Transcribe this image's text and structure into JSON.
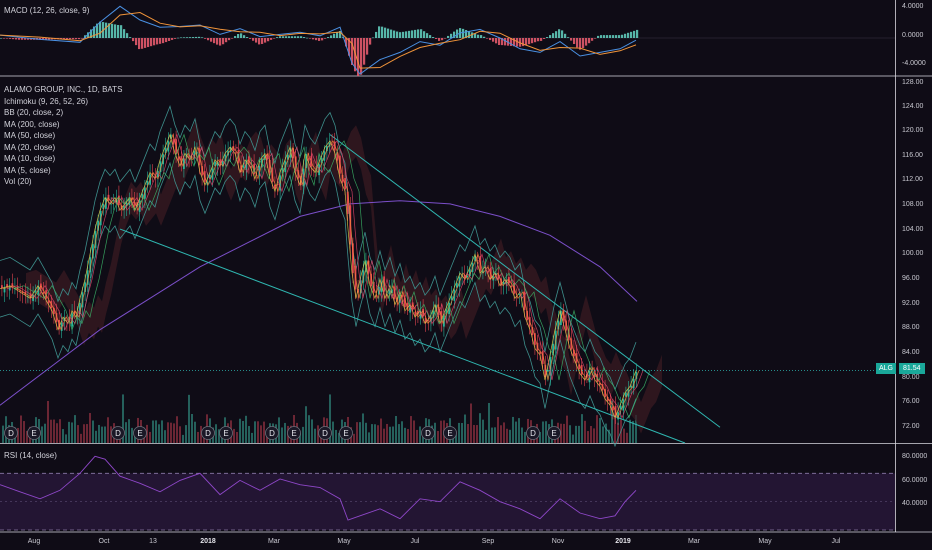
{
  "chart_data": {
    "type": "line",
    "title": "ALAMO GROUP, INC., 1D, BATS",
    "symbol": "ALG",
    "last_price": "81.54",
    "indicators": [
      "Ichimoku (9, 26, 52, 26)",
      "BB (20, close, 2)",
      "MA (200, close)",
      "MA (50, close)",
      "MA (20, close)",
      "MA (10, close)",
      "MA (5, close)",
      "Vol (20)"
    ],
    "macd_label": "MACD (12, 26, close, 9)",
    "rsi_label": "RSI (14, close)",
    "x_ticks": [
      "Aug",
      "Oct",
      "13",
      "2018",
      "Mar",
      "May",
      "Jul",
      "Sep",
      "Nov",
      "2019",
      "Mar",
      "May",
      "Jul"
    ],
    "y_ticks_price": [
      "128.00",
      "124.00",
      "120.00",
      "116.00",
      "112.00",
      "108.00",
      "104.00",
      "100.00",
      "96.00",
      "92.00",
      "88.00",
      "84.00",
      "80.00",
      "76.00",
      "72.00"
    ],
    "y_ticks_macd": [
      "4.0000",
      "0.0000",
      "-4.0000"
    ],
    "y_ticks_rsi": [
      "80.0000",
      "60.0000",
      "40.0000"
    ],
    "ylim_price": [
      70,
      128
    ],
    "ylim_macd": [
      -5,
      5
    ],
    "ylim_rsi": [
      30,
      90
    ],
    "event_markers": [
      "D",
      "E",
      "D",
      "E",
      "D",
      "E",
      "D",
      "E",
      "D",
      "E",
      "D",
      "E",
      "D",
      "E"
    ],
    "close_path": [
      [
        0,
        94.5
      ],
      [
        10,
        95
      ],
      [
        20,
        94
      ],
      [
        30,
        93
      ],
      [
        38,
        95
      ],
      [
        45,
        93
      ],
      [
        52,
        91
      ],
      [
        58,
        88
      ],
      [
        63,
        90
      ],
      [
        68,
        89
      ],
      [
        72,
        91
      ],
      [
        76,
        90
      ],
      [
        80,
        93
      ],
      [
        85,
        96
      ],
      [
        90,
        100
      ],
      [
        95,
        104
      ],
      [
        100,
        107
      ],
      [
        105,
        109
      ],
      [
        110,
        108
      ],
      [
        115,
        109
      ],
      [
        120,
        107
      ],
      [
        125,
        108
      ],
      [
        130,
        109
      ],
      [
        135,
        107
      ],
      [
        140,
        109
      ],
      [
        145,
        111
      ],
      [
        150,
        113
      ],
      [
        155,
        112
      ],
      [
        160,
        115
      ],
      [
        165,
        117
      ],
      [
        170,
        119
      ],
      [
        175,
        116
      ],
      [
        180,
        114
      ],
      [
        185,
        116
      ],
      [
        190,
        115
      ],
      [
        195,
        117
      ],
      [
        200,
        113
      ],
      [
        205,
        111
      ],
      [
        210,
        113
      ],
      [
        215,
        115
      ],
      [
        220,
        114
      ],
      [
        225,
        116
      ],
      [
        230,
        117
      ],
      [
        235,
        116
      ],
      [
        240,
        113
      ],
      [
        245,
        115
      ],
      [
        250,
        114
      ],
      [
        255,
        112
      ],
      [
        260,
        115
      ],
      [
        265,
        116
      ],
      [
        270,
        112
      ],
      [
        275,
        110
      ],
      [
        280,
        113
      ],
      [
        285,
        115
      ],
      [
        290,
        117
      ],
      [
        295,
        113
      ],
      [
        300,
        111
      ],
      [
        305,
        116
      ],
      [
        310,
        114
      ],
      [
        315,
        113
      ],
      [
        320,
        115
      ],
      [
        325,
        117
      ],
      [
        330,
        118
      ],
      [
        335,
        116
      ],
      [
        340,
        112
      ],
      [
        345,
        110
      ],
      [
        348,
        104
      ],
      [
        352,
        97
      ],
      [
        356,
        93
      ],
      [
        360,
        96
      ],
      [
        365,
        99
      ],
      [
        370,
        95
      ],
      [
        375,
        93
      ],
      [
        380,
        96
      ],
      [
        385,
        93
      ],
      [
        390,
        95
      ],
      [
        395,
        92
      ],
      [
        400,
        94
      ],
      [
        405,
        91
      ],
      [
        410,
        92
      ],
      [
        415,
        90
      ],
      [
        420,
        91
      ],
      [
        425,
        89
      ],
      [
        430,
        90
      ],
      [
        435,
        92
      ],
      [
        440,
        89
      ],
      [
        445,
        91
      ],
      [
        450,
        93
      ],
      [
        455,
        95
      ],
      [
        460,
        97
      ],
      [
        465,
        96
      ],
      [
        470,
        98
      ],
      [
        475,
        100
      ],
      [
        480,
        97
      ],
      [
        485,
        98
      ],
      [
        490,
        96
      ],
      [
        495,
        97
      ],
      [
        500,
        95
      ],
      [
        505,
        96
      ],
      [
        510,
        95
      ],
      [
        515,
        93
      ],
      [
        520,
        94
      ],
      [
        525,
        90
      ],
      [
        530,
        88
      ],
      [
        535,
        85
      ],
      [
        540,
        84
      ],
      [
        545,
        80
      ],
      [
        550,
        84
      ],
      [
        555,
        88
      ],
      [
        560,
        91
      ],
      [
        565,
        88
      ],
      [
        570,
        85
      ],
      [
        575,
        83
      ],
      [
        580,
        81
      ],
      [
        585,
        80
      ],
      [
        590,
        82
      ],
      [
        595,
        80
      ],
      [
        600,
        79
      ],
      [
        605,
        77
      ],
      [
        610,
        76
      ],
      [
        615,
        74
      ],
      [
        620,
        76
      ],
      [
        625,
        78
      ],
      [
        630,
        79
      ],
      [
        636,
        81.54
      ]
    ],
    "ma200_path": [
      [
        0,
        76
      ],
      [
        50,
        82
      ],
      [
        100,
        88
      ],
      [
        150,
        93
      ],
      [
        200,
        98
      ],
      [
        250,
        102
      ],
      [
        300,
        106
      ],
      [
        350,
        108
      ],
      [
        400,
        108.5
      ],
      [
        450,
        108
      ],
      [
        500,
        106
      ],
      [
        550,
        103
      ],
      [
        600,
        98
      ],
      [
        637,
        92.5
      ]
    ],
    "trendline_upper": [
      [
        330,
        119
      ],
      [
        720,
        72.5
      ]
    ],
    "trendline_lower": [
      [
        120,
        104
      ],
      [
        685,
        70
      ]
    ],
    "macd_series": [
      [
        0,
        0.4
      ],
      [
        40,
        -0.2
      ],
      [
        80,
        -0.6
      ],
      [
        100,
        2.2
      ],
      [
        120,
        4.4
      ],
      [
        140,
        2.5
      ],
      [
        160,
        1.5
      ],
      [
        180,
        1.6
      ],
      [
        200,
        1.8
      ],
      [
        220,
        0.5
      ],
      [
        240,
        1.3
      ],
      [
        260,
        0.2
      ],
      [
        280,
        0.5
      ],
      [
        300,
        0.8
      ],
      [
        320,
        0.3
      ],
      [
        340,
        1.5
      ],
      [
        352,
        -3.5
      ],
      [
        360,
        -5
      ],
      [
        380,
        -3
      ],
      [
        400,
        -2
      ],
      [
        420,
        -0.5
      ],
      [
        440,
        -1
      ],
      [
        460,
        0.7
      ],
      [
        480,
        1.2
      ],
      [
        500,
        0
      ],
      [
        520,
        -1.5
      ],
      [
        540,
        -2
      ],
      [
        560,
        -0.5
      ],
      [
        580,
        -2.5
      ],
      [
        600,
        -2
      ],
      [
        620,
        -1.5
      ],
      [
        636,
        -0.3
      ]
    ],
    "rsi_series": [
      [
        0,
        62
      ],
      [
        20,
        57
      ],
      [
        40,
        52
      ],
      [
        60,
        58
      ],
      [
        80,
        70
      ],
      [
        95,
        82
      ],
      [
        105,
        80
      ],
      [
        120,
        68
      ],
      [
        140,
        63
      ],
      [
        160,
        57
      ],
      [
        180,
        65
      ],
      [
        200,
        70
      ],
      [
        220,
        55
      ],
      [
        240,
        65
      ],
      [
        260,
        58
      ],
      [
        280,
        66
      ],
      [
        300,
        62
      ],
      [
        320,
        60
      ],
      [
        340,
        52
      ],
      [
        348,
        37
      ],
      [
        360,
        40
      ],
      [
        380,
        45
      ],
      [
        400,
        38
      ],
      [
        420,
        52
      ],
      [
        440,
        50
      ],
      [
        460,
        64
      ],
      [
        480,
        58
      ],
      [
        500,
        50
      ],
      [
        520,
        45
      ],
      [
        540,
        38
      ],
      [
        560,
        52
      ],
      [
        580,
        42
      ],
      [
        600,
        38
      ],
      [
        615,
        40
      ],
      [
        625,
        50
      ],
      [
        636,
        58
      ]
    ]
  }
}
